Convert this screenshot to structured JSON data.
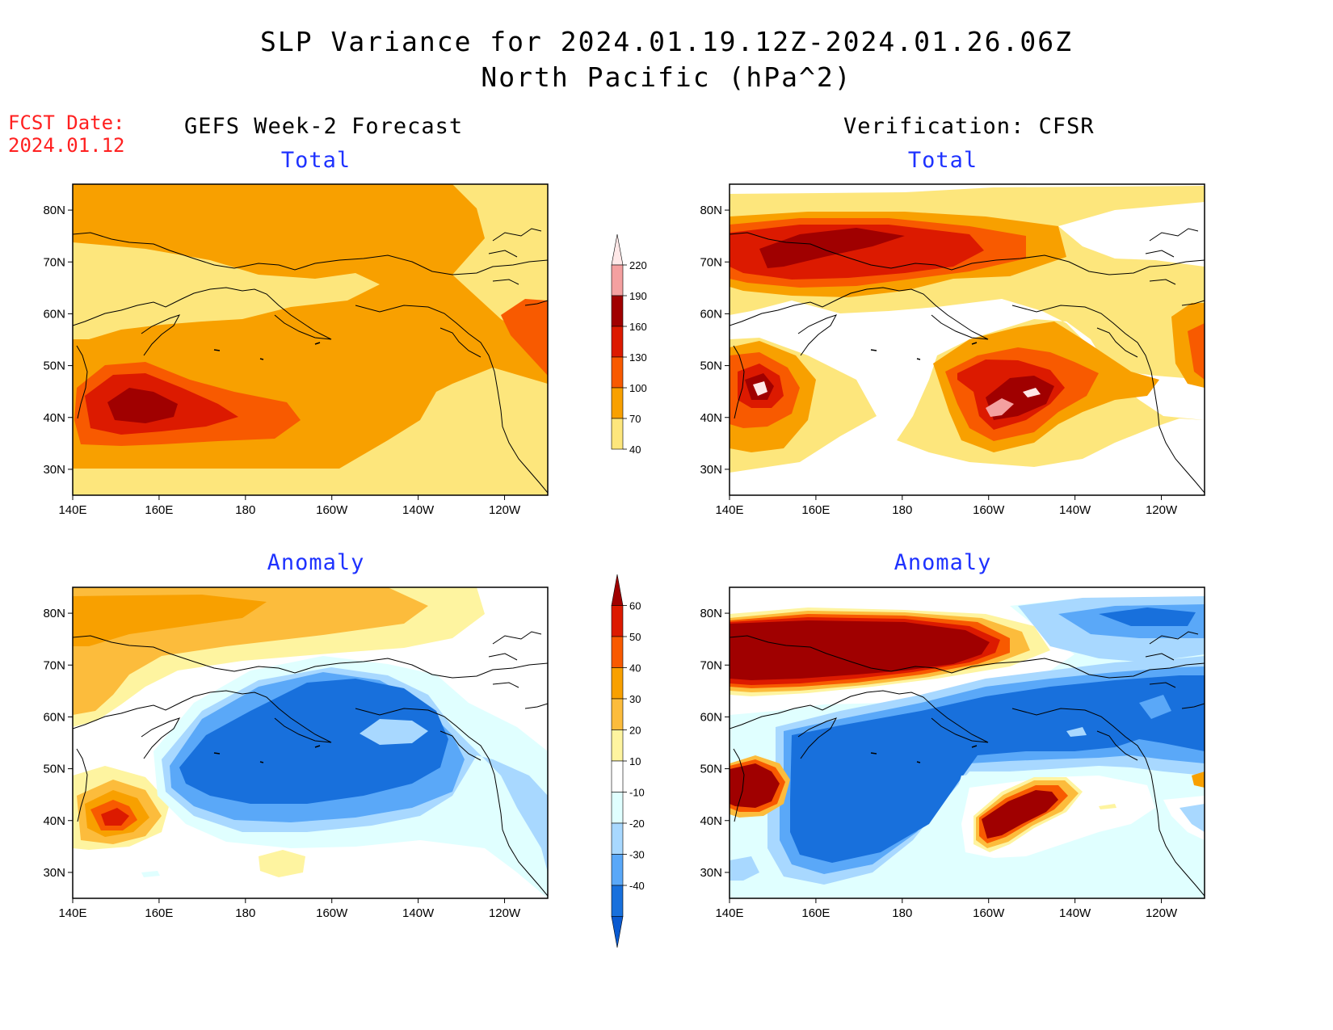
{
  "title_line1": "SLP Variance for 2024.01.19.12Z-2024.01.26.06Z",
  "title_line2": "North Pacific (hPa^2)",
  "forecast_date_label": "FCST Date:",
  "forecast_date_value": "2024.01.12",
  "left_column_title": "GEFS Week-2 Forecast",
  "right_column_title": "Verification: CFSR",
  "panels": [
    {
      "id": "fcst-total",
      "title": "Total"
    },
    {
      "id": "obs-total",
      "title": "Total"
    },
    {
      "id": "fcst-anomaly",
      "title": "Anomaly"
    },
    {
      "id": "obs-anomaly",
      "title": "Anomaly"
    }
  ],
  "lon_ticks": [
    "140E",
    "160E",
    "180",
    "160W",
    "140W",
    "120W"
  ],
  "lat_ticks": [
    "80N",
    "70N",
    "60N",
    "50N",
    "40N",
    "30N"
  ],
  "lon_range_deg_east": [
    140,
    250
  ],
  "lat_range_deg_north": [
    25,
    85
  ],
  "total_colorbar": {
    "levels": [
      "220",
      "190",
      "160",
      "130",
      "100",
      "70",
      "40"
    ],
    "colors": [
      "#ffe8e8",
      "#f4a0a0",
      "#a00000",
      "#dc1a00",
      "#f85a00",
      "#f8a000",
      "#fde67c"
    ]
  },
  "anomaly_colorbar": {
    "levels": [
      "60",
      "50",
      "40",
      "30",
      "20",
      "10",
      "-10",
      "-20",
      "-30",
      "-40"
    ],
    "colors": [
      "#a00000",
      "#dc1a00",
      "#f85a00",
      "#f8a000",
      "#fcbc3c",
      "#fef4a0",
      "#ffffff",
      "#e0ffff",
      "#a8d8ff",
      "#5aa8f8",
      "#1870dc",
      "#0a5ad0"
    ]
  }
}
